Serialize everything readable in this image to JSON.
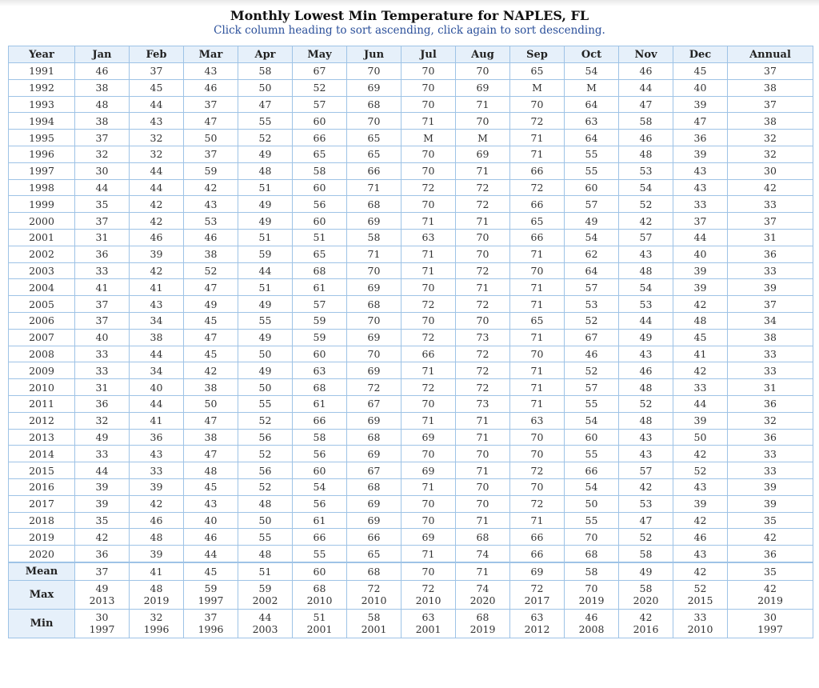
{
  "header": {
    "title": "Monthly Lowest Min Temperature for NAPLES, FL",
    "subtitle": "Click column heading to sort ascending, click again to sort descending."
  },
  "columns": [
    "Year",
    "Jan",
    "Feb",
    "Mar",
    "Apr",
    "May",
    "Jun",
    "Jul",
    "Aug",
    "Sep",
    "Oct",
    "Nov",
    "Dec",
    "Annual"
  ],
  "rows": [
    [
      "1991",
      "46",
      "37",
      "43",
      "58",
      "67",
      "70",
      "70",
      "70",
      "65",
      "54",
      "46",
      "45",
      "37"
    ],
    [
      "1992",
      "38",
      "45",
      "46",
      "50",
      "52",
      "69",
      "70",
      "69",
      "M",
      "M",
      "44",
      "40",
      "38"
    ],
    [
      "1993",
      "48",
      "44",
      "37",
      "47",
      "57",
      "68",
      "70",
      "71",
      "70",
      "64",
      "47",
      "39",
      "37"
    ],
    [
      "1994",
      "38",
      "43",
      "47",
      "55",
      "60",
      "70",
      "71",
      "70",
      "72",
      "63",
      "58",
      "47",
      "38"
    ],
    [
      "1995",
      "37",
      "32",
      "50",
      "52",
      "66",
      "65",
      "M",
      "M",
      "71",
      "64",
      "46",
      "36",
      "32"
    ],
    [
      "1996",
      "32",
      "32",
      "37",
      "49",
      "65",
      "65",
      "70",
      "69",
      "71",
      "55",
      "48",
      "39",
      "32"
    ],
    [
      "1997",
      "30",
      "44",
      "59",
      "48",
      "58",
      "66",
      "70",
      "71",
      "66",
      "55",
      "53",
      "43",
      "30"
    ],
    [
      "1998",
      "44",
      "44",
      "42",
      "51",
      "60",
      "71",
      "72",
      "72",
      "72",
      "60",
      "54",
      "43",
      "42"
    ],
    [
      "1999",
      "35",
      "42",
      "43",
      "49",
      "56",
      "68",
      "70",
      "72",
      "66",
      "57",
      "52",
      "33",
      "33"
    ],
    [
      "2000",
      "37",
      "42",
      "53",
      "49",
      "60",
      "69",
      "71",
      "71",
      "65",
      "49",
      "42",
      "37",
      "37"
    ],
    [
      "2001",
      "31",
      "46",
      "46",
      "51",
      "51",
      "58",
      "63",
      "70",
      "66",
      "54",
      "57",
      "44",
      "31"
    ],
    [
      "2002",
      "36",
      "39",
      "38",
      "59",
      "65",
      "71",
      "71",
      "70",
      "71",
      "62",
      "43",
      "40",
      "36"
    ],
    [
      "2003",
      "33",
      "42",
      "52",
      "44",
      "68",
      "70",
      "71",
      "72",
      "70",
      "64",
      "48",
      "39",
      "33"
    ],
    [
      "2004",
      "41",
      "41",
      "47",
      "51",
      "61",
      "69",
      "70",
      "71",
      "71",
      "57",
      "54",
      "39",
      "39"
    ],
    [
      "2005",
      "37",
      "43",
      "49",
      "49",
      "57",
      "68",
      "72",
      "72",
      "71",
      "53",
      "53",
      "42",
      "37"
    ],
    [
      "2006",
      "37",
      "34",
      "45",
      "55",
      "59",
      "70",
      "70",
      "70",
      "65",
      "52",
      "44",
      "48",
      "34"
    ],
    [
      "2007",
      "40",
      "38",
      "47",
      "49",
      "59",
      "69",
      "72",
      "73",
      "71",
      "67",
      "49",
      "45",
      "38"
    ],
    [
      "2008",
      "33",
      "44",
      "45",
      "50",
      "60",
      "70",
      "66",
      "72",
      "70",
      "46",
      "43",
      "41",
      "33"
    ],
    [
      "2009",
      "33",
      "34",
      "42",
      "49",
      "63",
      "69",
      "71",
      "72",
      "71",
      "52",
      "46",
      "42",
      "33"
    ],
    [
      "2010",
      "31",
      "40",
      "38",
      "50",
      "68",
      "72",
      "72",
      "72",
      "71",
      "57",
      "48",
      "33",
      "31"
    ],
    [
      "2011",
      "36",
      "44",
      "50",
      "55",
      "61",
      "67",
      "70",
      "73",
      "71",
      "55",
      "52",
      "44",
      "36"
    ],
    [
      "2012",
      "32",
      "41",
      "47",
      "52",
      "66",
      "69",
      "71",
      "71",
      "63",
      "54",
      "48",
      "39",
      "32"
    ],
    [
      "2013",
      "49",
      "36",
      "38",
      "56",
      "58",
      "68",
      "69",
      "71",
      "70",
      "60",
      "43",
      "50",
      "36"
    ],
    [
      "2014",
      "33",
      "43",
      "47",
      "52",
      "56",
      "69",
      "70",
      "70",
      "70",
      "55",
      "43",
      "42",
      "33"
    ],
    [
      "2015",
      "44",
      "33",
      "48",
      "56",
      "60",
      "67",
      "69",
      "71",
      "72",
      "66",
      "57",
      "52",
      "33"
    ],
    [
      "2016",
      "39",
      "39",
      "45",
      "52",
      "54",
      "68",
      "71",
      "70",
      "70",
      "54",
      "42",
      "43",
      "39"
    ],
    [
      "2017",
      "39",
      "42",
      "43",
      "48",
      "56",
      "69",
      "70",
      "70",
      "72",
      "50",
      "53",
      "39",
      "39"
    ],
    [
      "2018",
      "35",
      "46",
      "40",
      "50",
      "61",
      "69",
      "70",
      "71",
      "71",
      "55",
      "47",
      "42",
      "35"
    ],
    [
      "2019",
      "42",
      "48",
      "46",
      "55",
      "66",
      "66",
      "69",
      "68",
      "66",
      "70",
      "52",
      "46",
      "42"
    ],
    [
      "2020",
      "36",
      "39",
      "44",
      "48",
      "55",
      "65",
      "71",
      "74",
      "66",
      "68",
      "58",
      "43",
      "36"
    ]
  ],
  "summary": {
    "mean": {
      "label": "Mean",
      "values": [
        "37",
        "41",
        "45",
        "51",
        "60",
        "68",
        "70",
        "71",
        "69",
        "58",
        "49",
        "42",
        "35"
      ]
    },
    "max": {
      "label": "Max",
      "values": [
        [
          "49",
          "2013"
        ],
        [
          "48",
          "2019"
        ],
        [
          "59",
          "1997"
        ],
        [
          "59",
          "2002"
        ],
        [
          "68",
          "2010"
        ],
        [
          "72",
          "2010"
        ],
        [
          "72",
          "2010"
        ],
        [
          "74",
          "2020"
        ],
        [
          "72",
          "2017"
        ],
        [
          "70",
          "2019"
        ],
        [
          "58",
          "2020"
        ],
        [
          "52",
          "2015"
        ],
        [
          "42",
          "2019"
        ]
      ]
    },
    "min": {
      "label": "Min",
      "values": [
        [
          "30",
          "1997"
        ],
        [
          "32",
          "1996"
        ],
        [
          "37",
          "1996"
        ],
        [
          "44",
          "2003"
        ],
        [
          "51",
          "2001"
        ],
        [
          "58",
          "2001"
        ],
        [
          "63",
          "2001"
        ],
        [
          "68",
          "2019"
        ],
        [
          "63",
          "2012"
        ],
        [
          "46",
          "2008"
        ],
        [
          "42",
          "2016"
        ],
        [
          "33",
          "2010"
        ],
        [
          "30",
          "1997"
        ]
      ]
    }
  },
  "colors": {
    "header_bg": "#e6f0fa",
    "border": "#9ec3e6",
    "subtitle": "#2a4f9a"
  }
}
